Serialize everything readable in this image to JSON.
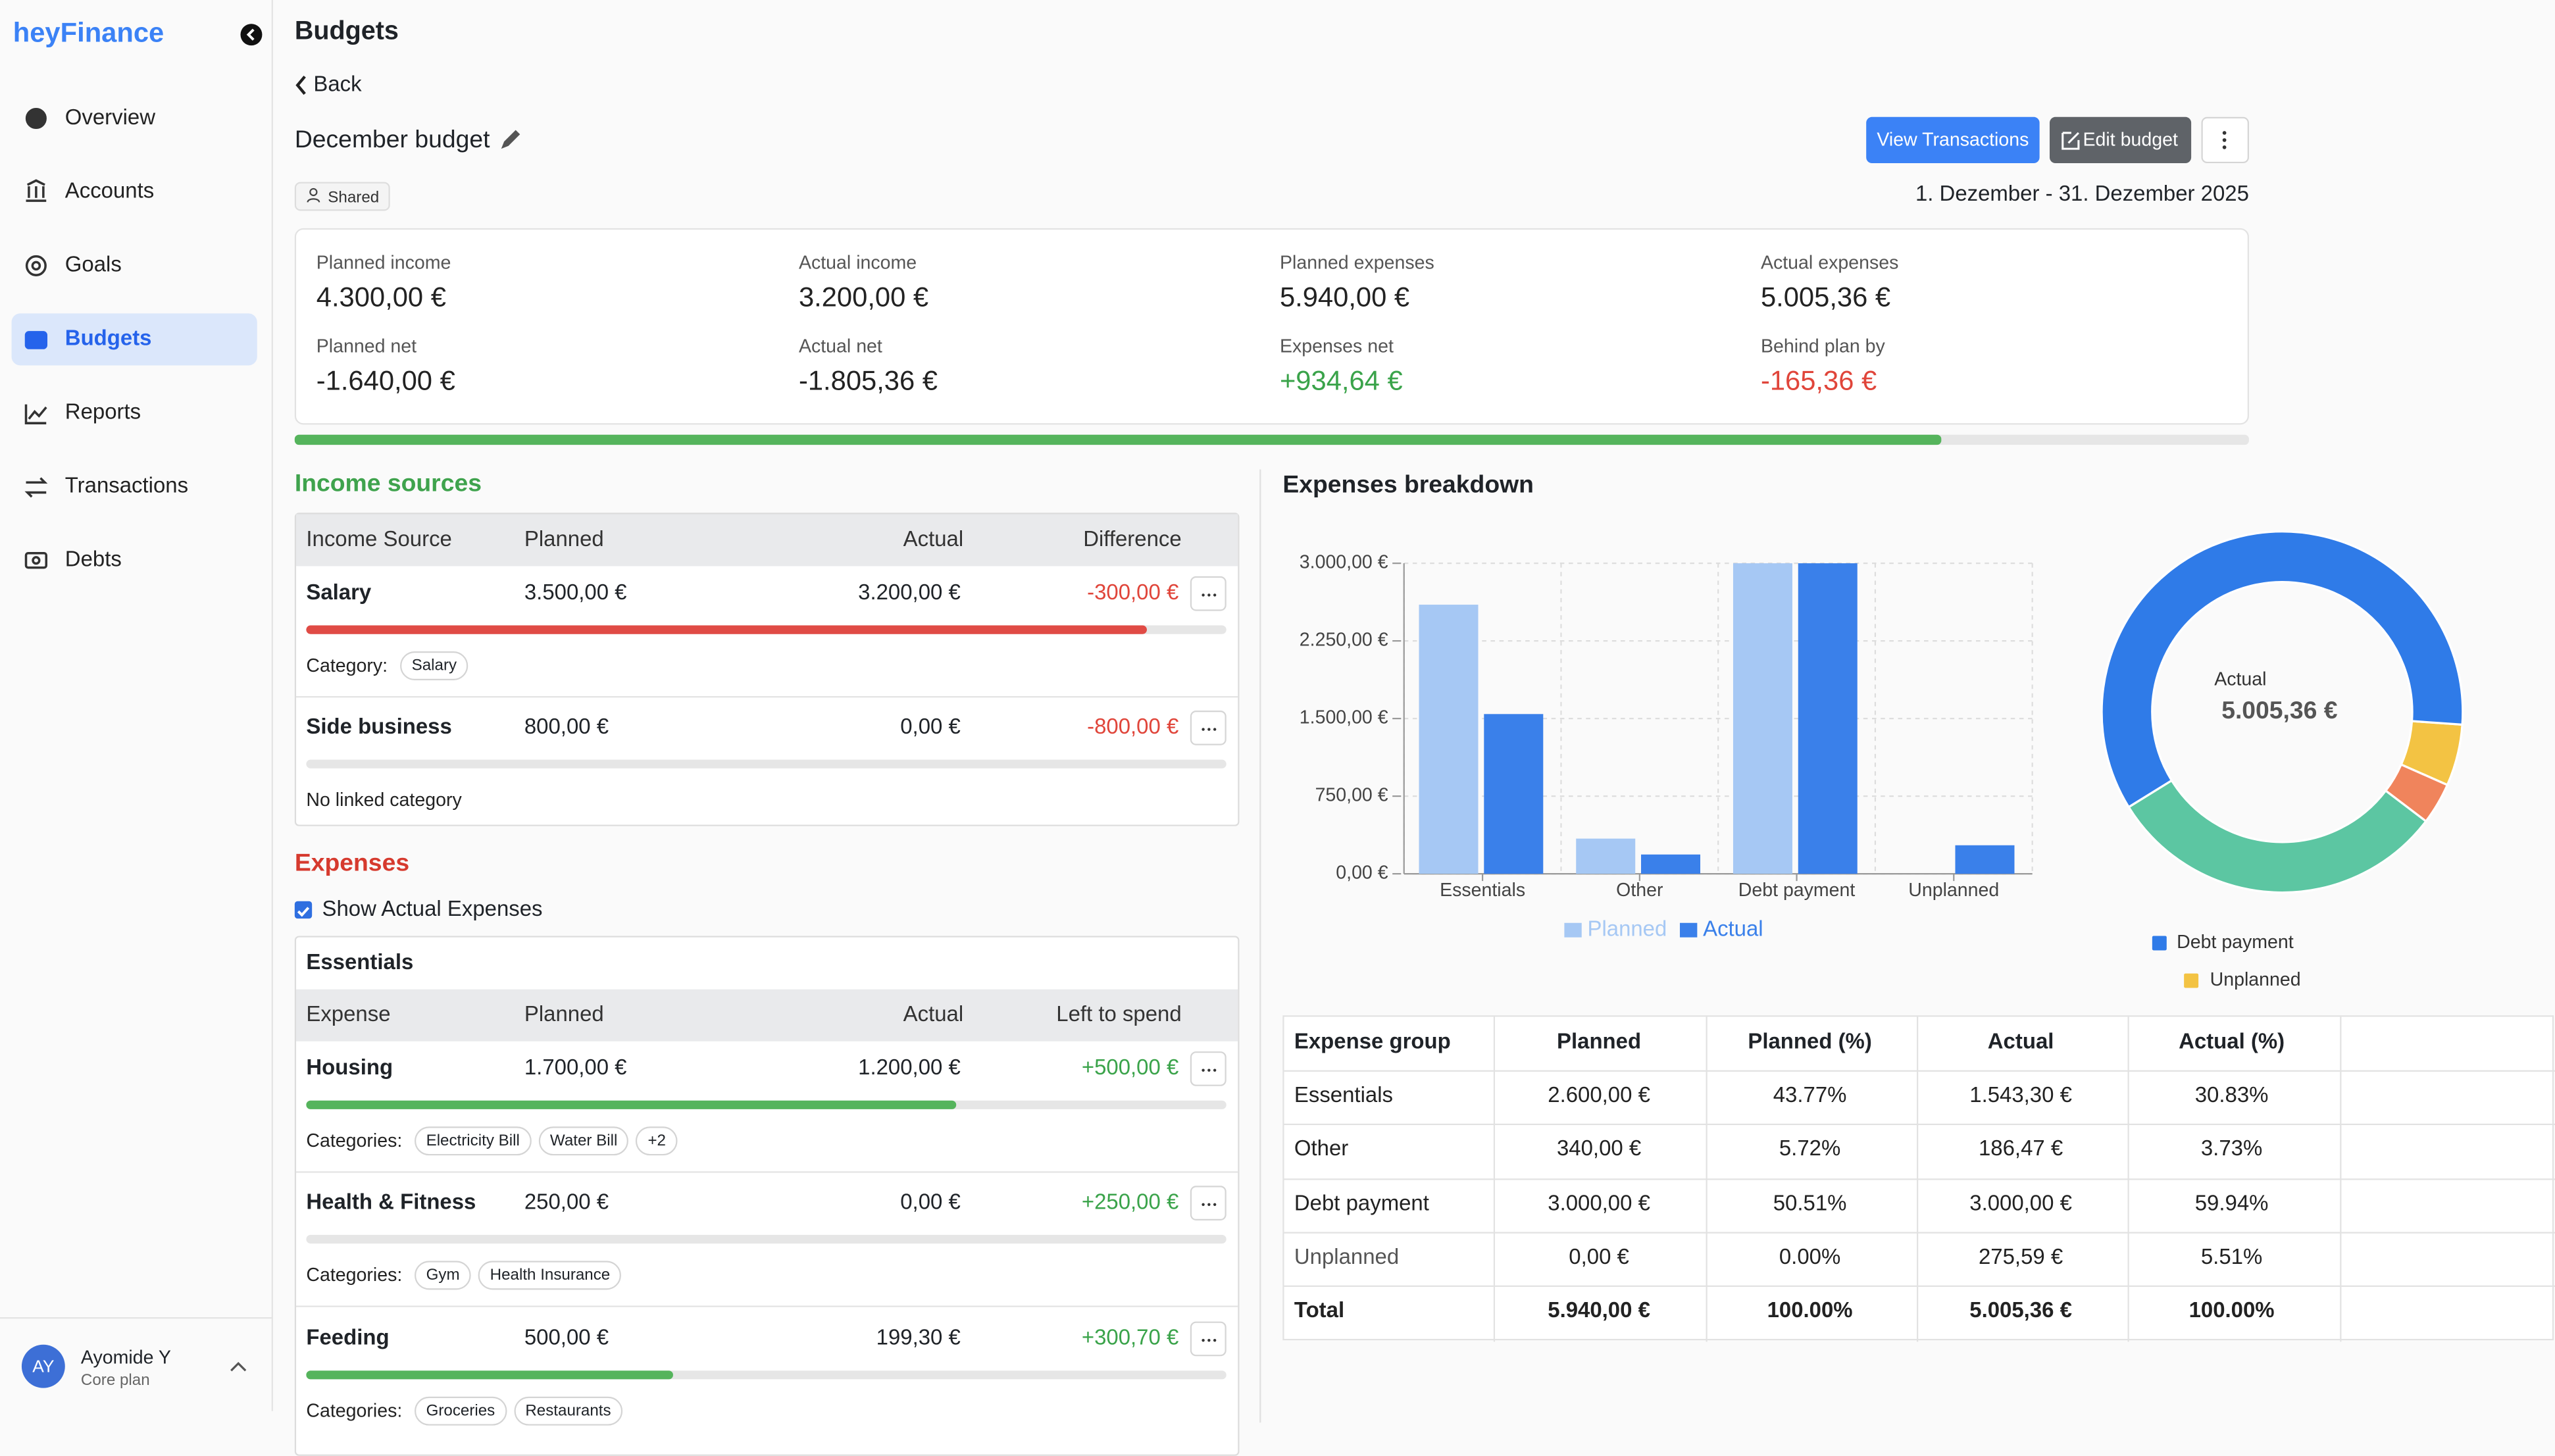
{
  "sidebar": {
    "brand": "heyFinance",
    "nav": [
      "Overview",
      "Accounts",
      "Goals",
      "Budgets",
      "Reports",
      "Transactions",
      "Debts"
    ],
    "active": 3,
    "user": {
      "initials": "AY",
      "name": "Ayomide Y",
      "plan": "Core plan"
    }
  },
  "header": {
    "title": "Budgets",
    "back": "Back",
    "budget_name": "December budget",
    "badge": "Shared",
    "actions": [
      "View Transactions",
      "Edit budget"
    ],
    "date_range": "1. Dezember - 31. Dezember 2025"
  },
  "summary": {
    "items": [
      {
        "label": "Planned income",
        "value": "4.300,00 €"
      },
      {
        "label": "Actual income",
        "value": "3.200,00 €"
      },
      {
        "label": "Planned expenses",
        "value": "5.940,00 €"
      },
      {
        "label": "Actual expenses",
        "value": "5.005,36 €"
      },
      {
        "label": "Planned net",
        "value": "-1.640,00 €"
      },
      {
        "label": "Actual net",
        "value": "-1.805,36 €"
      },
      {
        "label": "Expenses net",
        "value": "+934,64 €"
      },
      {
        "label": "Behind plan by",
        "value": "-165,36 €"
      }
    ],
    "progress": 84.27
  },
  "income": {
    "title": "Income sources",
    "columns": [
      "Income Source",
      "Planned",
      "Actual",
      "Difference"
    ],
    "rows": [
      {
        "name": "Salary",
        "planned": "3.500,00 €",
        "actual": "3.200,00 €",
        "difference": "-300,00 €",
        "progress": 91.43,
        "category_label": "Category:",
        "categories": [
          "Salary"
        ]
      },
      {
        "name": "Side business",
        "planned": "800,00 €",
        "actual": "0,00 €",
        "difference": "-800,00 €",
        "progress": 0,
        "category_label": "No linked category",
        "categories": []
      }
    ]
  },
  "expenses": {
    "title": "Expenses",
    "toggle": "Show Actual Expenses",
    "group": "Essentials",
    "columns": [
      "Expense",
      "Planned",
      "Actual",
      "Left to spend"
    ],
    "rows": [
      {
        "name": "Housing",
        "planned": "1.700,00 €",
        "actual": "1.200,00 €",
        "difference": "+500,00 €",
        "progress": 70.59,
        "category_label": "Categories:",
        "categories": [
          "Electricity Bill",
          "Water Bill",
          "+2"
        ]
      },
      {
        "name": "Health & Fitness",
        "planned": "250,00 €",
        "actual": "0,00 €",
        "difference": "+250,00 €",
        "progress": 0,
        "category_label": "Categories:",
        "categories": [
          "Gym",
          "Health Insurance"
        ]
      },
      {
        "name": "Feeding",
        "planned": "500,00 €",
        "actual": "199,30 €",
        "difference": "+300,70 €",
        "progress": 39.86,
        "category_label": "Categories:",
        "categories": [
          "Groceries",
          "Restaurants"
        ]
      }
    ]
  },
  "chart_data": {
    "type": "bar",
    "title": "Expenses breakdown",
    "categories": [
      "Essentials",
      "Other",
      "Debt payment",
      "Unplanned"
    ],
    "series": [
      {
        "name": "Planned",
        "color": "#a6c8f4",
        "values": [
          2600,
          340,
          3000,
          0
        ]
      },
      {
        "name": "Actual",
        "color": "#3a80ea",
        "values": [
          1543.3,
          186.47,
          3000,
          275.59
        ]
      }
    ],
    "ylim": [
      0,
      3000
    ],
    "yticks": [
      {
        "value": 0,
        "label": "0,00 €"
      },
      {
        "value": 750,
        "label": "750,00 €"
      },
      {
        "value": 1500,
        "label": "1.500,00 €"
      },
      {
        "value": 2250,
        "label": "2.250,00 €"
      },
      {
        "value": 3000,
        "label": "3.000,00 €"
      }
    ],
    "grid": true
  },
  "donut": {
    "colors": [
      "#5cc6a2",
      "#f0845c",
      "#2f7be8",
      "#f3c343"
    ]
  },
  "breakdown_table": {
    "columns": [
      "Expense group",
      "Planned",
      "Planned (%)",
      "Actual",
      "Actual (%)"
    ],
    "rows": [
      [
        "Essentials",
        "2.600,00 €",
        "43.77%",
        "1.543,30 €",
        "30.83%"
      ],
      [
        "Other",
        "340,00 €",
        "5.72%",
        "186,47 €",
        "3.73%"
      ],
      [
        "Debt payment",
        "3.000,00 €",
        "50.51%",
        "3.000,00 €",
        "59.94%"
      ],
      [
        "Unplanned",
        "0,00 €",
        "0.00%",
        "275,59 €",
        "5.51%"
      ],
      [
        "Total",
        "5.940,00 €",
        "100.00%",
        "5.005,36 €",
        "100.00%"
      ]
    ]
  }
}
